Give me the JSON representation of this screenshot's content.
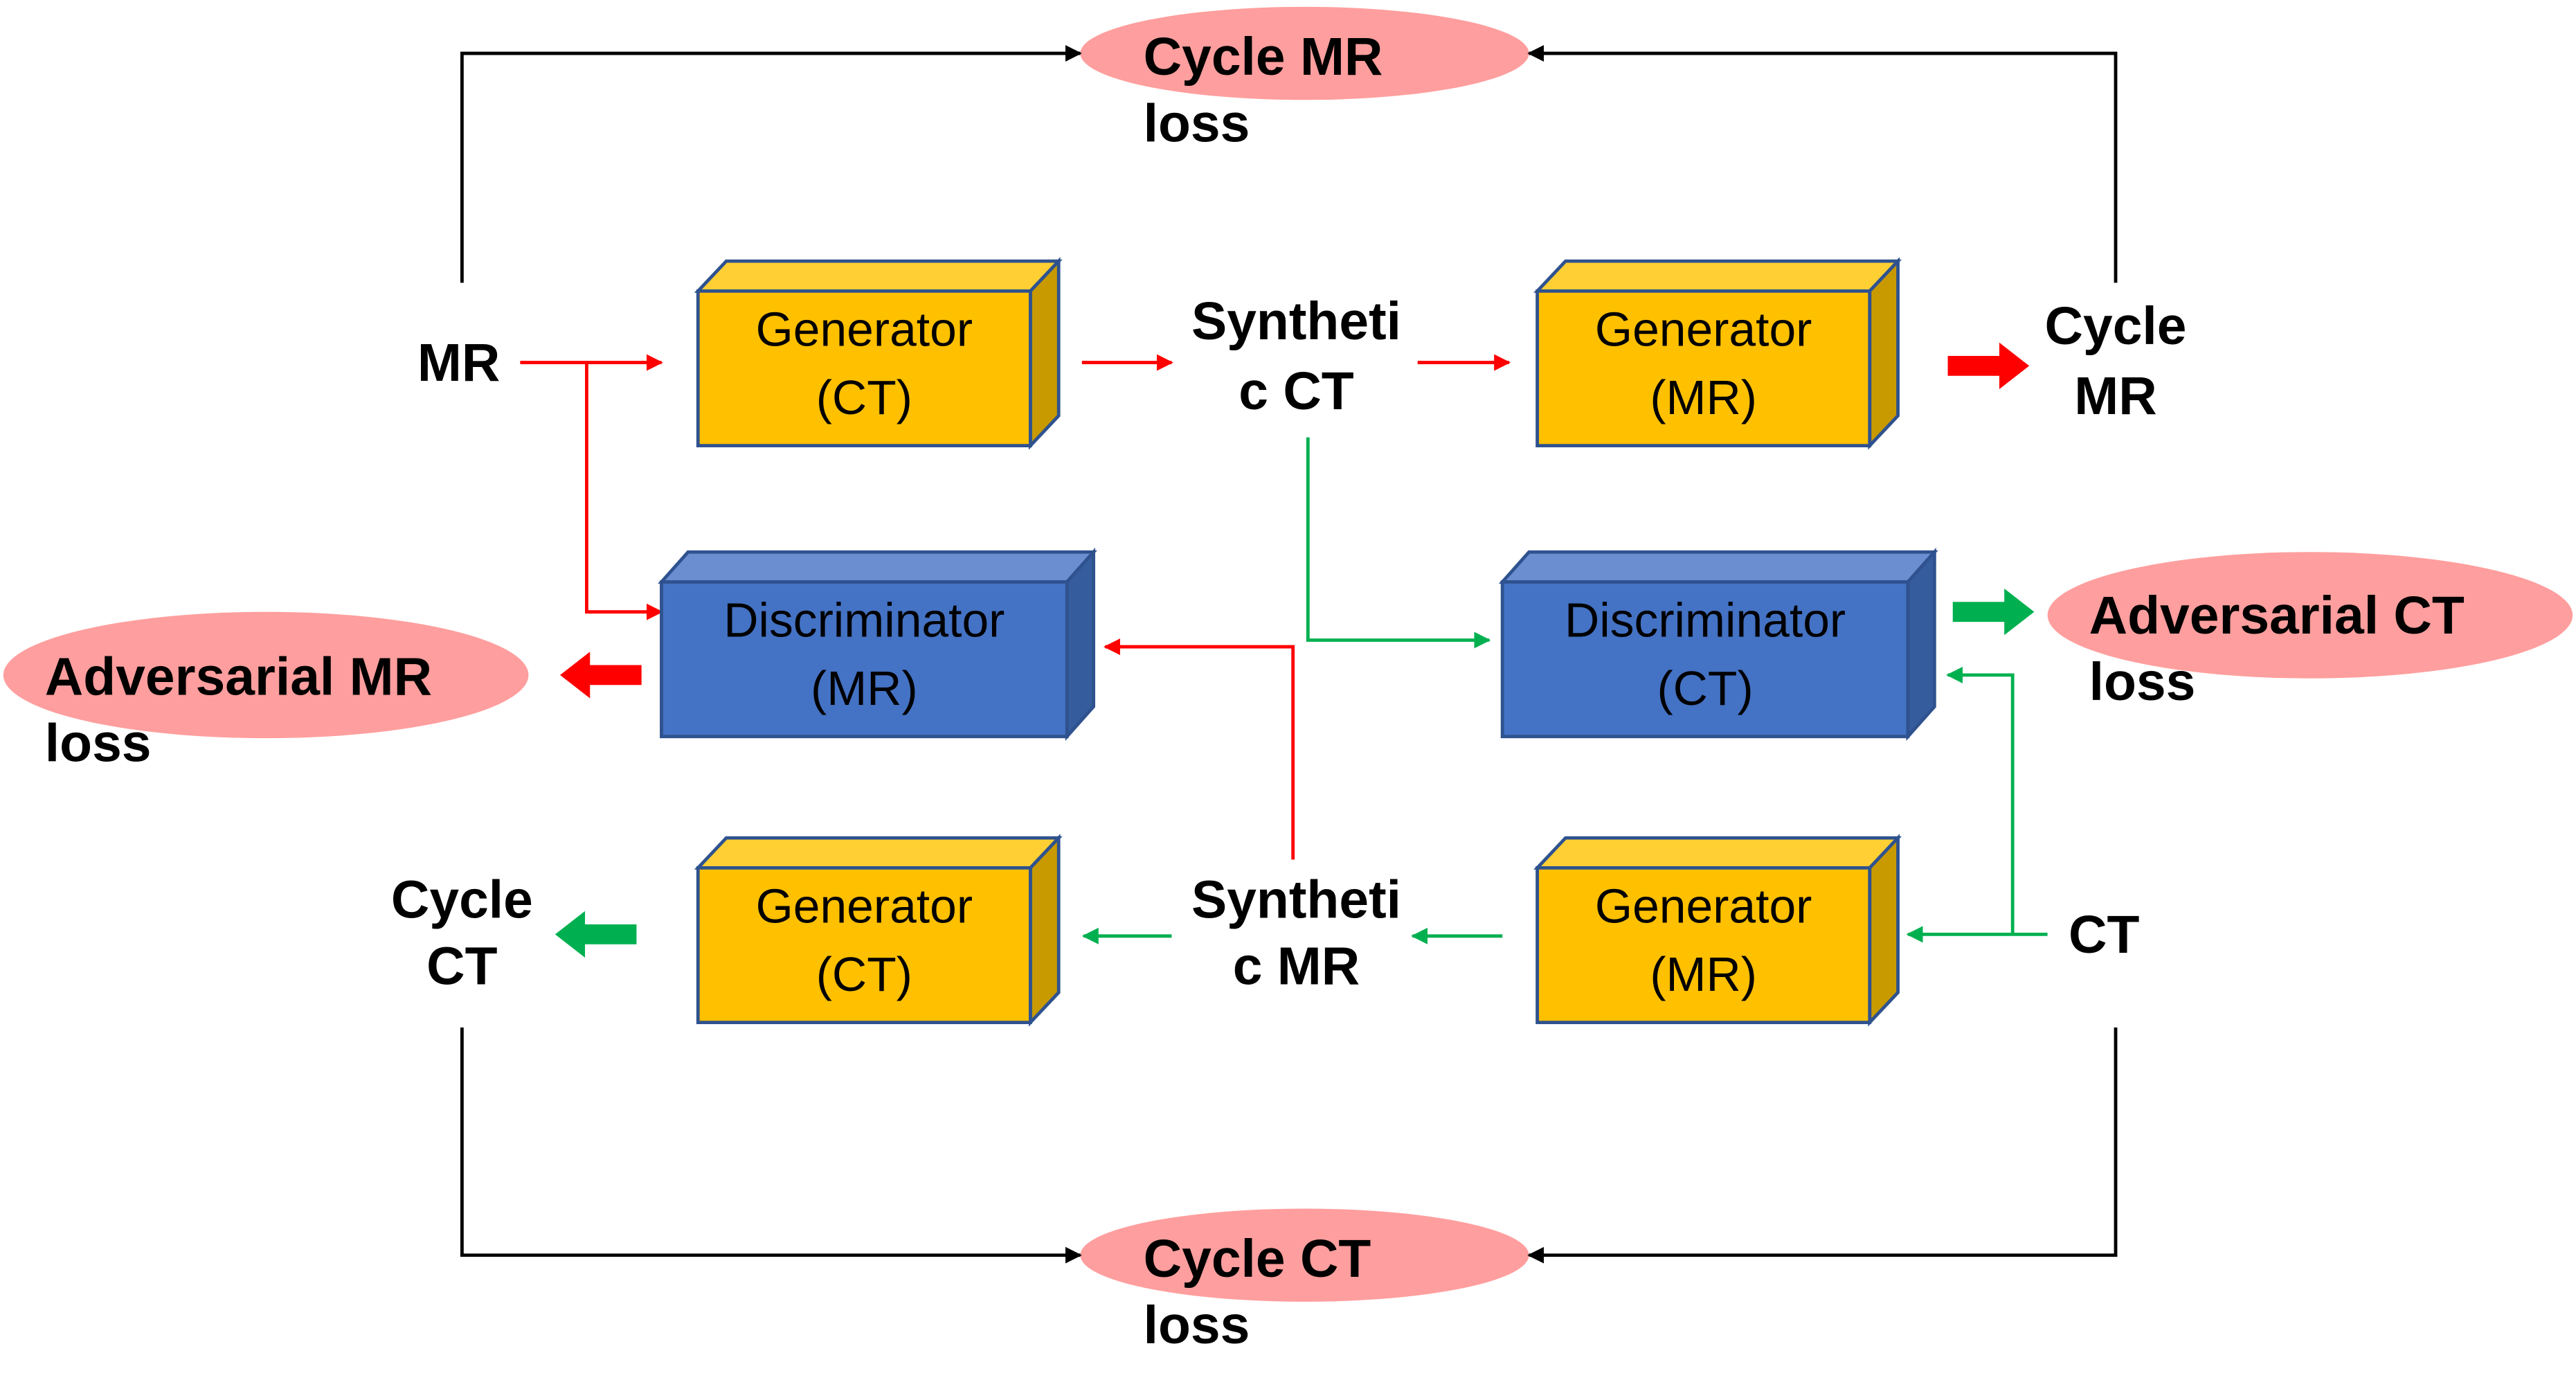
{
  "colors": {
    "generator": "#FFC000",
    "discriminator": "#4472C4",
    "loss": "#FF9E9E",
    "mr_path": "#FF0000",
    "ct_path": "#00B050",
    "cycle_path": "#000000"
  },
  "losses": {
    "cycle_mr": [
      "Cycle MR",
      "loss"
    ],
    "cycle_ct": [
      "Cycle CT",
      "loss"
    ],
    "adv_mr": [
      "Adversarial MR",
      "loss"
    ],
    "adv_ct": [
      "Adversarial CT",
      "loss"
    ]
  },
  "nodes": {
    "mr": "MR",
    "ct": "CT",
    "synthetic_ct": [
      "Syntheti",
      "c CT"
    ],
    "synthetic_mr": [
      "Syntheti",
      "c MR"
    ],
    "cycle_mr": [
      "Cycle",
      "MR"
    ],
    "cycle_ct": [
      "Cycle",
      "CT"
    ]
  },
  "boxes": {
    "gen_ct_top": [
      "Generator",
      "(CT)"
    ],
    "gen_mr_top": [
      "Generator",
      "(MR)"
    ],
    "disc_mr": [
      "Discriminator",
      "(MR)"
    ],
    "disc_ct": [
      "Discriminator",
      "(CT)"
    ],
    "gen_ct_bottom": [
      "Generator",
      "(CT)"
    ],
    "gen_mr_bottom": [
      "Generator",
      "(MR)"
    ]
  }
}
